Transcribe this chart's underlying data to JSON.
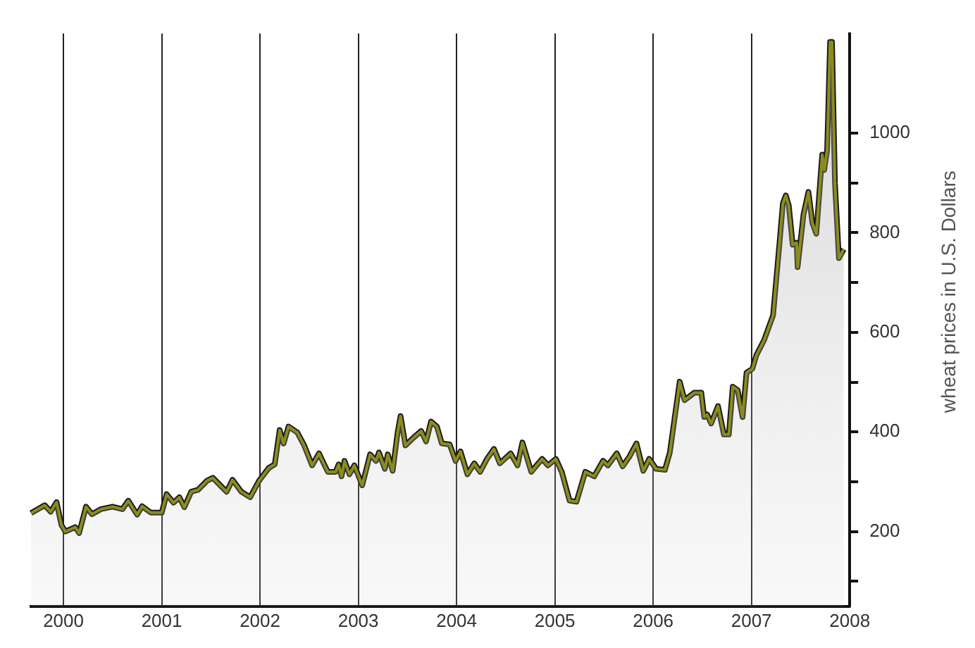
{
  "chart_data": {
    "type": "area",
    "ylabel": "wheat prices in U.S. Dollars",
    "x": [
      1999.67,
      1999.81,
      1999.87,
      1999.93,
      1999.98,
      2000.02,
      2000.12,
      2000.16,
      2000.23,
      2000.29,
      2000.38,
      2000.5,
      2000.6,
      2000.66,
      2000.75,
      2000.8,
      2000.89,
      2001.0,
      2001.05,
      2001.12,
      2001.18,
      2001.23,
      2001.3,
      2001.37,
      2001.46,
      2001.52,
      2001.66,
      2001.72,
      2001.81,
      2001.9,
      2001.99,
      2002.09,
      2002.15,
      2002.2,
      2002.24,
      2002.29,
      2002.38,
      2002.45,
      2002.53,
      2002.6,
      2002.69,
      2002.77,
      2002.8,
      2002.83,
      2002.86,
      2002.91,
      2002.96,
      2003.04,
      2003.12,
      2003.18,
      2003.21,
      2003.27,
      2003.3,
      2003.35,
      2003.4,
      2003.43,
      2003.48,
      2003.57,
      2003.64,
      2003.69,
      2003.74,
      2003.8,
      2003.85,
      2003.93,
      2003.99,
      2004.04,
      2004.11,
      2004.18,
      2004.24,
      2004.31,
      2004.38,
      2004.44,
      2004.55,
      2004.62,
      2004.67,
      2004.76,
      2004.87,
      2004.93,
      2005.01,
      2005.07,
      2005.15,
      2005.22,
      2005.31,
      2005.4,
      2005.49,
      2005.54,
      2005.63,
      2005.69,
      2005.76,
      2005.83,
      2005.9,
      2005.96,
      2006.03,
      2006.12,
      2006.17,
      2006.22,
      2006.27,
      2006.32,
      2006.42,
      2006.49,
      2006.52,
      2006.55,
      2006.59,
      2006.66,
      2006.72,
      2006.77,
      2006.81,
      2006.86,
      2006.91,
      2006.95,
      2007.01,
      2007.05,
      2007.13,
      2007.22,
      2007.28,
      2007.32,
      2007.35,
      2007.38,
      2007.42,
      2007.46,
      2007.47,
      2007.53,
      2007.58,
      2007.62,
      2007.66,
      2007.72,
      2007.74,
      2007.77,
      2007.8,
      2007.82,
      2007.85,
      2007.89,
      2007.94
    ],
    "series": [
      {
        "color": "#8c8c1e",
        "values": [
          237,
          253,
          240,
          259,
          213,
          200,
          209,
          197,
          250,
          235,
          245,
          250,
          245,
          262,
          234,
          251,
          238,
          238,
          275,
          258,
          269,
          249,
          280,
          284,
          302,
          308,
          280,
          304,
          280,
          269,
          302,
          328,
          335,
          404,
          377,
          411,
          399,
          373,
          333,
          357,
          320,
          320,
          335,
          311,
          342,
          315,
          333,
          293,
          355,
          342,
          359,
          326,
          355,
          322,
          399,
          432,
          373,
          390,
          402,
          381,
          421,
          411,
          377,
          375,
          342,
          361,
          315,
          337,
          320,
          346,
          366,
          337,
          357,
          333,
          379,
          320,
          346,
          333,
          346,
          320,
          262,
          260,
          320,
          311,
          342,
          333,
          357,
          331,
          351,
          377,
          322,
          346,
          326,
          324,
          359,
          430,
          501,
          464,
          479,
          479,
          430,
          435,
          417,
          452,
          395,
          395,
          491,
          484,
          430,
          519,
          527,
          554,
          585,
          634,
          767,
          859,
          875,
          855,
          776,
          780,
          731,
          837,
          882,
          820,
          798,
          957,
          926,
          966,
          1183,
          1183,
          899,
          749,
          767
        ]
      }
    ],
    "xlim": [
      1999.67,
      2008
    ],
    "xticks": [
      2000,
      2001,
      2002,
      2003,
      2004,
      2005,
      2006,
      2007,
      2008
    ],
    "ylim": [
      50,
      1200
    ],
    "yticks": [
      {
        "value": 100,
        "label": null
      },
      200,
      {
        "value": 300,
        "label": null
      },
      400,
      {
        "value": 500,
        "label": null
      },
      600,
      {
        "value": 700,
        "label": null
      },
      800,
      {
        "value": 900,
        "label": null
      },
      1000
    ],
    "grid": "x"
  }
}
